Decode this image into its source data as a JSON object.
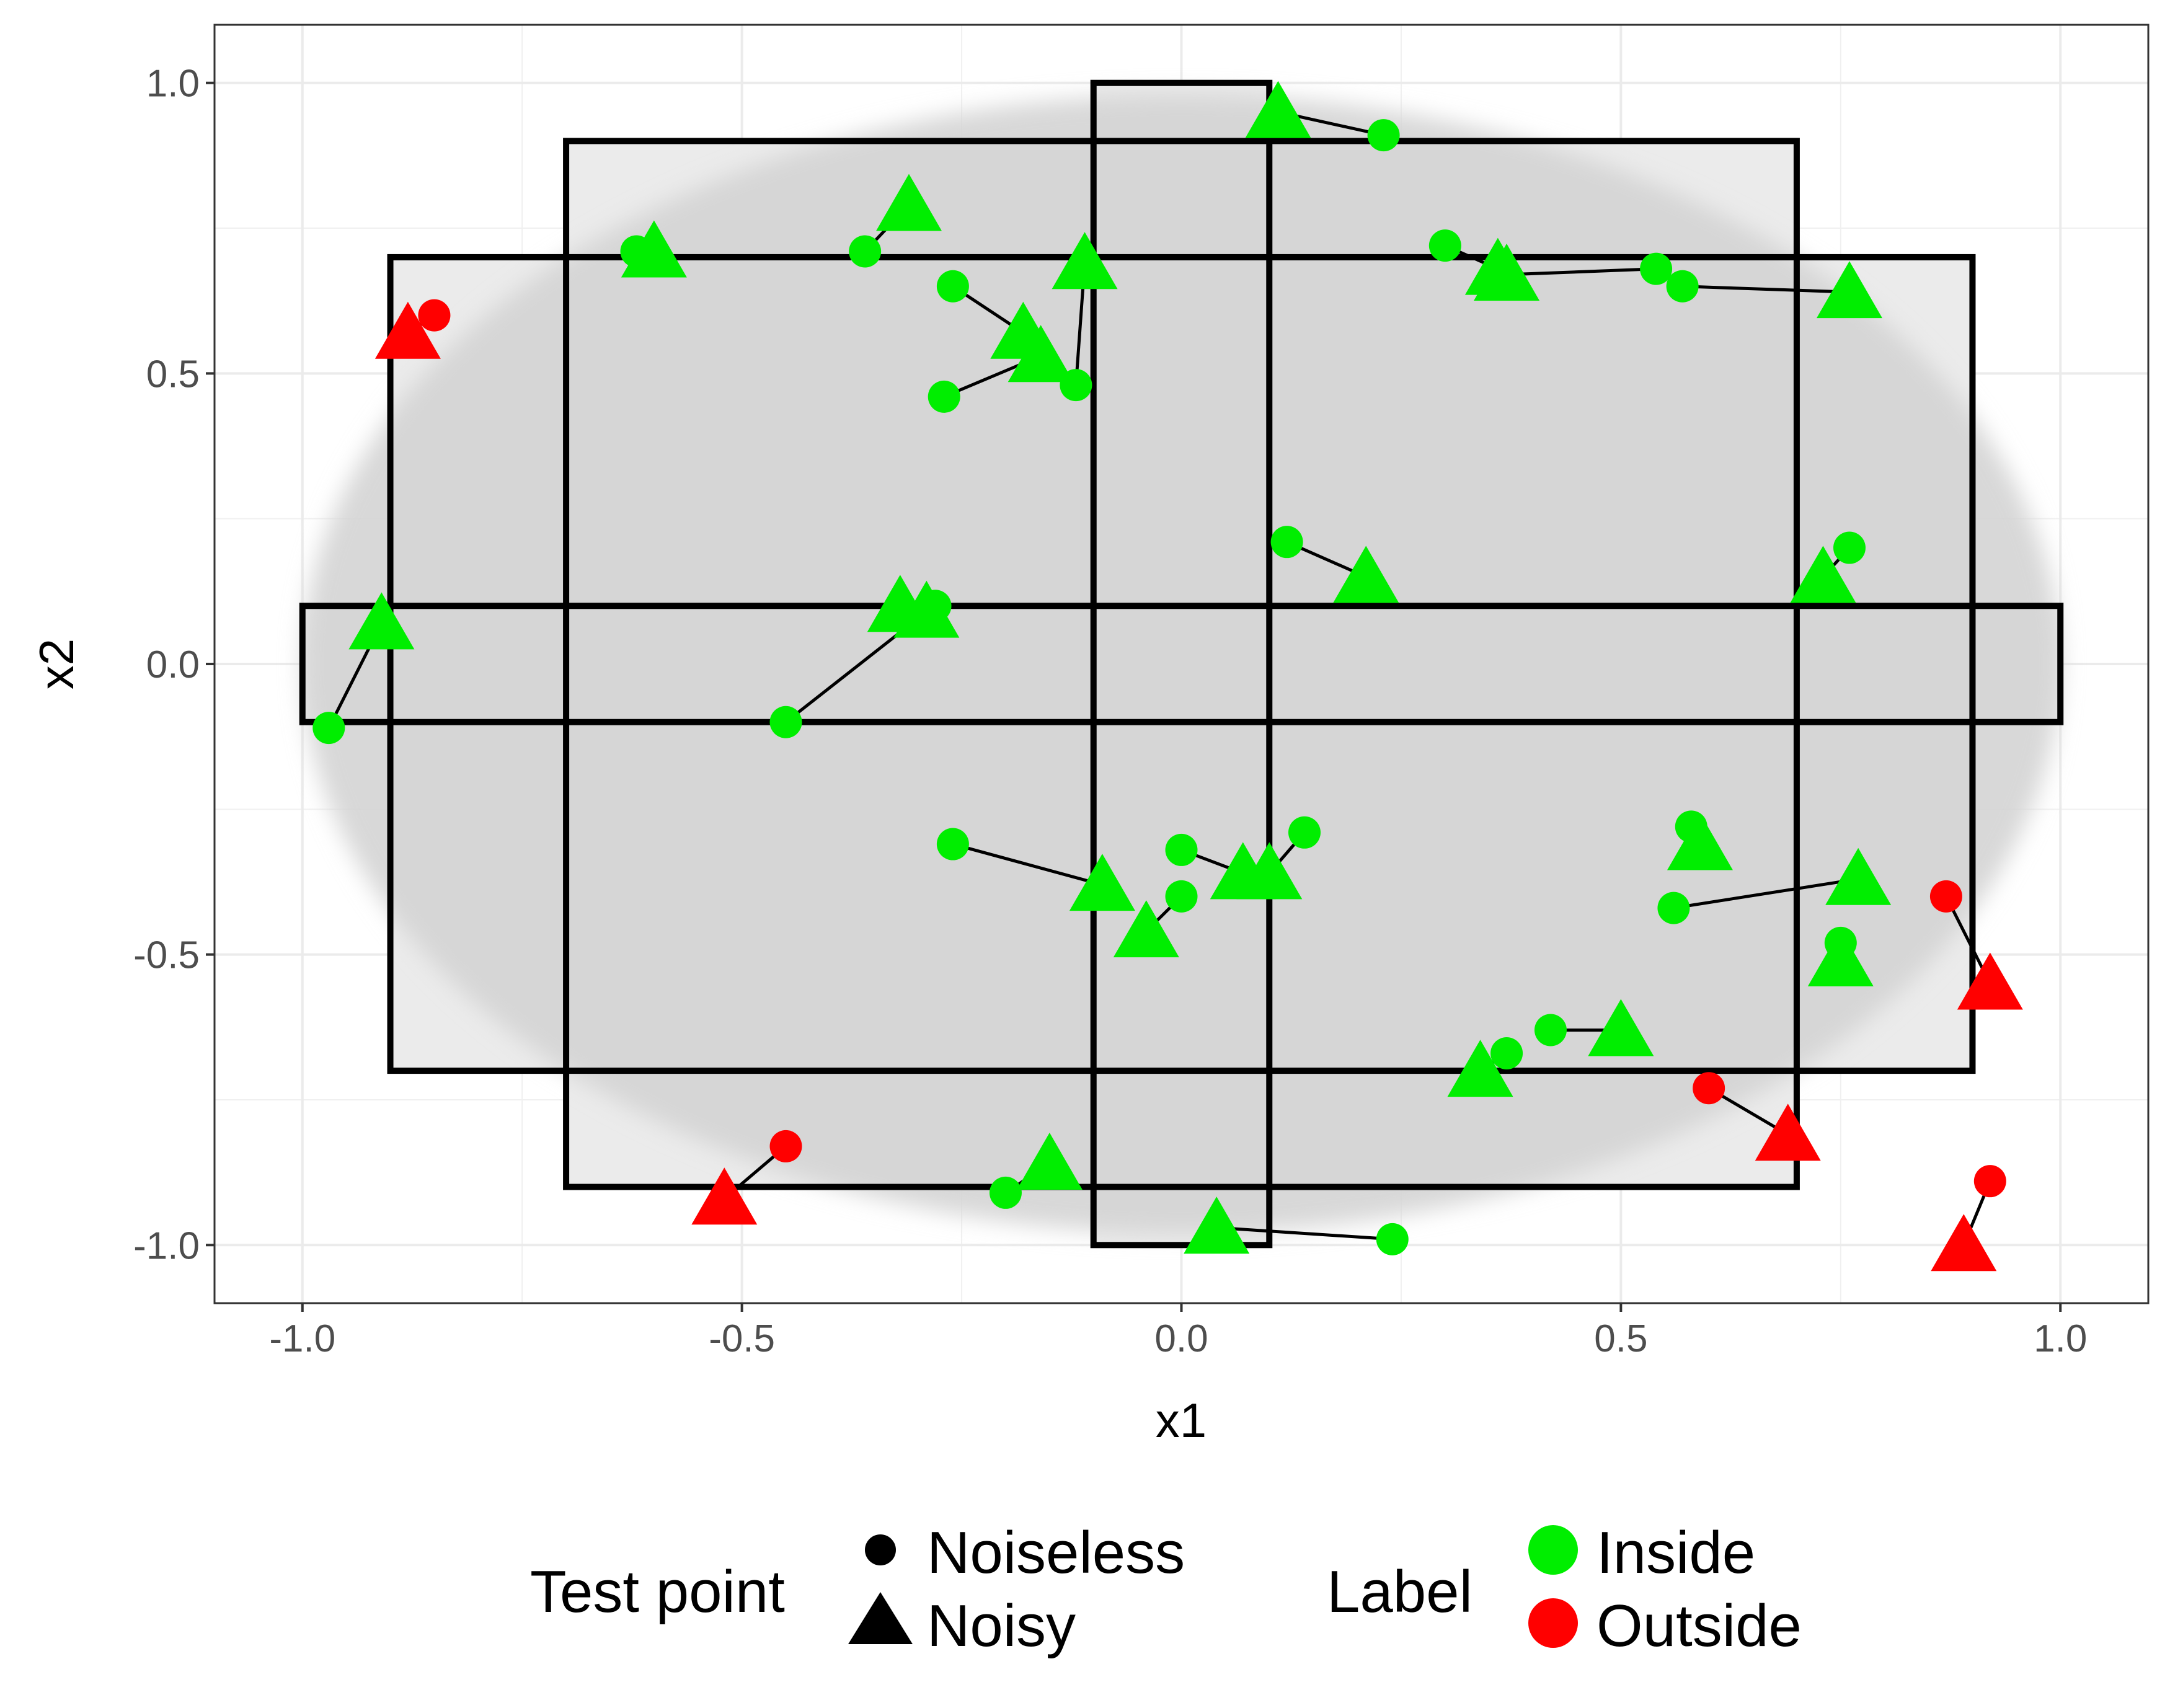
{
  "chart_data": {
    "type": "scatter",
    "xlabel": "x1",
    "ylabel": "x2",
    "xlim": [
      -1.1,
      1.1
    ],
    "ylim": [
      -1.1,
      1.1
    ],
    "x_ticks": [
      -1.0,
      -0.5,
      0.0,
      0.5,
      1.0
    ],
    "y_ticks": [
      -1.0,
      -0.5,
      0.0,
      0.5,
      1.0
    ],
    "x_tick_labels": [
      "-1.0",
      "-0.5",
      "0.0",
      "0.5",
      "1.0"
    ],
    "y_tick_labels": [
      "-1.0",
      "-0.5",
      "0.0",
      "0.5",
      "1.0"
    ],
    "grid": true,
    "background": {
      "ellipse": {
        "cx": 0,
        "cy": 0,
        "rx": 1.0,
        "ry": 0.98,
        "color": "#d4d4d4"
      },
      "regions": [
        {
          "x": [
            -0.1,
            0.1
          ],
          "y": [
            -1.0,
            1.0
          ]
        },
        {
          "x": [
            -0.7,
            0.7
          ],
          "y": [
            -0.9,
            0.9
          ]
        },
        {
          "x": [
            -0.9,
            0.9
          ],
          "y": [
            -0.7,
            0.7
          ]
        },
        {
          "x": [
            -1.0,
            1.0
          ],
          "y": [
            -0.1,
            0.1
          ]
        }
      ]
    },
    "colors": {
      "Inside": "#00ee00",
      "Outside": "#ff0000"
    },
    "points": [
      {
        "noiseless": [
          0.23,
          0.91
        ],
        "noisy": [
          0.11,
          0.95
        ],
        "label": "Inside"
      },
      {
        "noiseless": [
          -0.36,
          0.71
        ],
        "noisy": [
          -0.31,
          0.79
        ],
        "label": "Inside"
      },
      {
        "noiseless": [
          -0.62,
          0.71
        ],
        "noisy": [
          -0.6,
          0.71
        ],
        "label": "Inside"
      },
      {
        "noiseless": [
          -0.26,
          0.65
        ],
        "noisy": [
          -0.18,
          0.57
        ],
        "label": "Inside"
      },
      {
        "noiseless": [
          -0.12,
          0.48
        ],
        "noisy": [
          -0.11,
          0.69
        ],
        "label": "Inside"
      },
      {
        "noiseless": [
          -0.27,
          0.46
        ],
        "noisy": [
          -0.16,
          0.53
        ],
        "label": "Inside"
      },
      {
        "noiseless": [
          -0.85,
          0.6
        ],
        "noisy": [
          -0.88,
          0.57
        ],
        "label": "Outside"
      },
      {
        "noiseless": [
          0.3,
          0.72
        ],
        "noisy": [
          0.36,
          0.68
        ],
        "label": "Inside"
      },
      {
        "noiseless": [
          0.54,
          0.68
        ],
        "noisy": [
          0.37,
          0.67
        ],
        "label": "Inside"
      },
      {
        "noiseless": [
          0.57,
          0.65
        ],
        "noisy": [
          0.76,
          0.64
        ],
        "label": "Inside"
      },
      {
        "noiseless": [
          0.12,
          0.21
        ],
        "noisy": [
          0.21,
          0.15
        ],
        "label": "Inside"
      },
      {
        "noiseless": [
          0.76,
          0.2
        ],
        "noisy": [
          0.73,
          0.15
        ],
        "label": "Inside"
      },
      {
        "noiseless": [
          -0.28,
          0.1
        ],
        "noisy": [
          -0.32,
          0.1
        ],
        "label": "Inside"
      },
      {
        "noiseless": [
          -0.45,
          -0.1
        ],
        "noisy": [
          -0.29,
          0.09
        ],
        "label": "Inside"
      },
      {
        "noiseless": [
          -0.97,
          -0.11
        ],
        "noisy": [
          -0.91,
          0.07
        ],
        "label": "Inside"
      },
      {
        "noiseless": [
          -0.26,
          -0.31
        ],
        "noisy": [
          -0.09,
          -0.38
        ],
        "label": "Inside"
      },
      {
        "noiseless": [
          0.0,
          -0.32
        ],
        "noisy": [
          0.07,
          -0.36
        ],
        "label": "Inside"
      },
      {
        "noiseless": [
          0.14,
          -0.29
        ],
        "noisy": [
          0.1,
          -0.36
        ],
        "label": "Inside"
      },
      {
        "noiseless": [
          0.0,
          -0.4
        ],
        "noisy": [
          -0.04,
          -0.46
        ],
        "label": "Inside"
      },
      {
        "noiseless": [
          0.58,
          -0.28
        ],
        "noisy": [
          0.59,
          -0.31
        ],
        "label": "Inside"
      },
      {
        "noiseless": [
          0.56,
          -0.42
        ],
        "noisy": [
          0.77,
          -0.37
        ],
        "label": "Inside"
      },
      {
        "noiseless": [
          0.75,
          -0.48
        ],
        "noisy": [
          0.75,
          -0.51
        ],
        "label": "Inside"
      },
      {
        "noiseless": [
          0.87,
          -0.4
        ],
        "noisy": [
          0.92,
          -0.55
        ],
        "label": "Outside"
      },
      {
        "noiseless": [
          0.42,
          -0.63
        ],
        "noisy": [
          0.5,
          -0.63
        ],
        "label": "Inside"
      },
      {
        "noiseless": [
          0.37,
          -0.67
        ],
        "noisy": [
          0.34,
          -0.7
        ],
        "label": "Inside"
      },
      {
        "noiseless": [
          0.6,
          -0.73
        ],
        "noisy": [
          0.69,
          -0.81
        ],
        "label": "Outside"
      },
      {
        "noiseless": [
          -0.45,
          -0.83
        ],
        "noisy": [
          -0.52,
          -0.92
        ],
        "label": "Outside"
      },
      {
        "noiseless": [
          -0.2,
          -0.91
        ],
        "noisy": [
          -0.15,
          -0.86
        ],
        "label": "Inside"
      },
      {
        "noiseless": [
          0.24,
          -0.99
        ],
        "noisy": [
          0.04,
          -0.97
        ],
        "label": "Inside"
      },
      {
        "noiseless": [
          0.92,
          -0.89
        ],
        "noisy": [
          0.89,
          -1.0
        ],
        "label": "Outside"
      }
    ],
    "legend": {
      "placement": "bottom",
      "shape_title": "Test point",
      "shape_entries": [
        "Noiseless",
        "Noisy"
      ],
      "color_title": "Label",
      "color_entries": [
        "Inside",
        "Outside"
      ]
    }
  }
}
